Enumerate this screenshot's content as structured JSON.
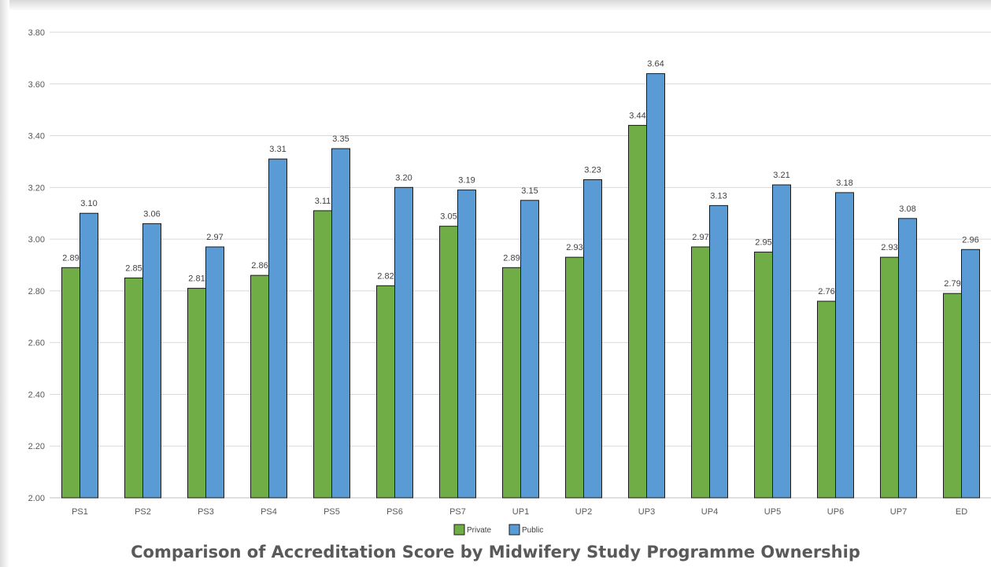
{
  "chart_data": {
    "type": "bar",
    "title": "Comparison of Accreditation Score by Midwifery Study Programme Ownership",
    "categories": [
      "PS1",
      "PS2",
      "PS3",
      "PS4",
      "PS5",
      "PS6",
      "PS7",
      "UP1",
      "UP2",
      "UP3",
      "UP4",
      "UP5",
      "UP6",
      "UP7",
      "ED"
    ],
    "series": [
      {
        "name": "Private",
        "color": "#70ad47",
        "values": [
          2.89,
          2.85,
          2.81,
          2.86,
          3.11,
          2.82,
          3.05,
          2.89,
          2.93,
          3.44,
          2.97,
          2.95,
          2.76,
          2.93,
          2.79
        ]
      },
      {
        "name": "Public",
        "color": "#5b9bd5",
        "values": [
          3.1,
          3.06,
          2.97,
          3.31,
          3.35,
          3.2,
          3.19,
          3.15,
          3.23,
          3.64,
          3.13,
          3.21,
          3.18,
          3.08,
          2.96
        ]
      }
    ],
    "ylim": [
      2.0,
      3.8
    ],
    "yticks": [
      "2.00",
      "2.20",
      "2.40",
      "2.60",
      "2.80",
      "3.00",
      "3.20",
      "3.40",
      "3.60",
      "3.80"
    ],
    "grid": true,
    "legend": "bottom-center",
    "xlabel": "",
    "ylabel": ""
  }
}
